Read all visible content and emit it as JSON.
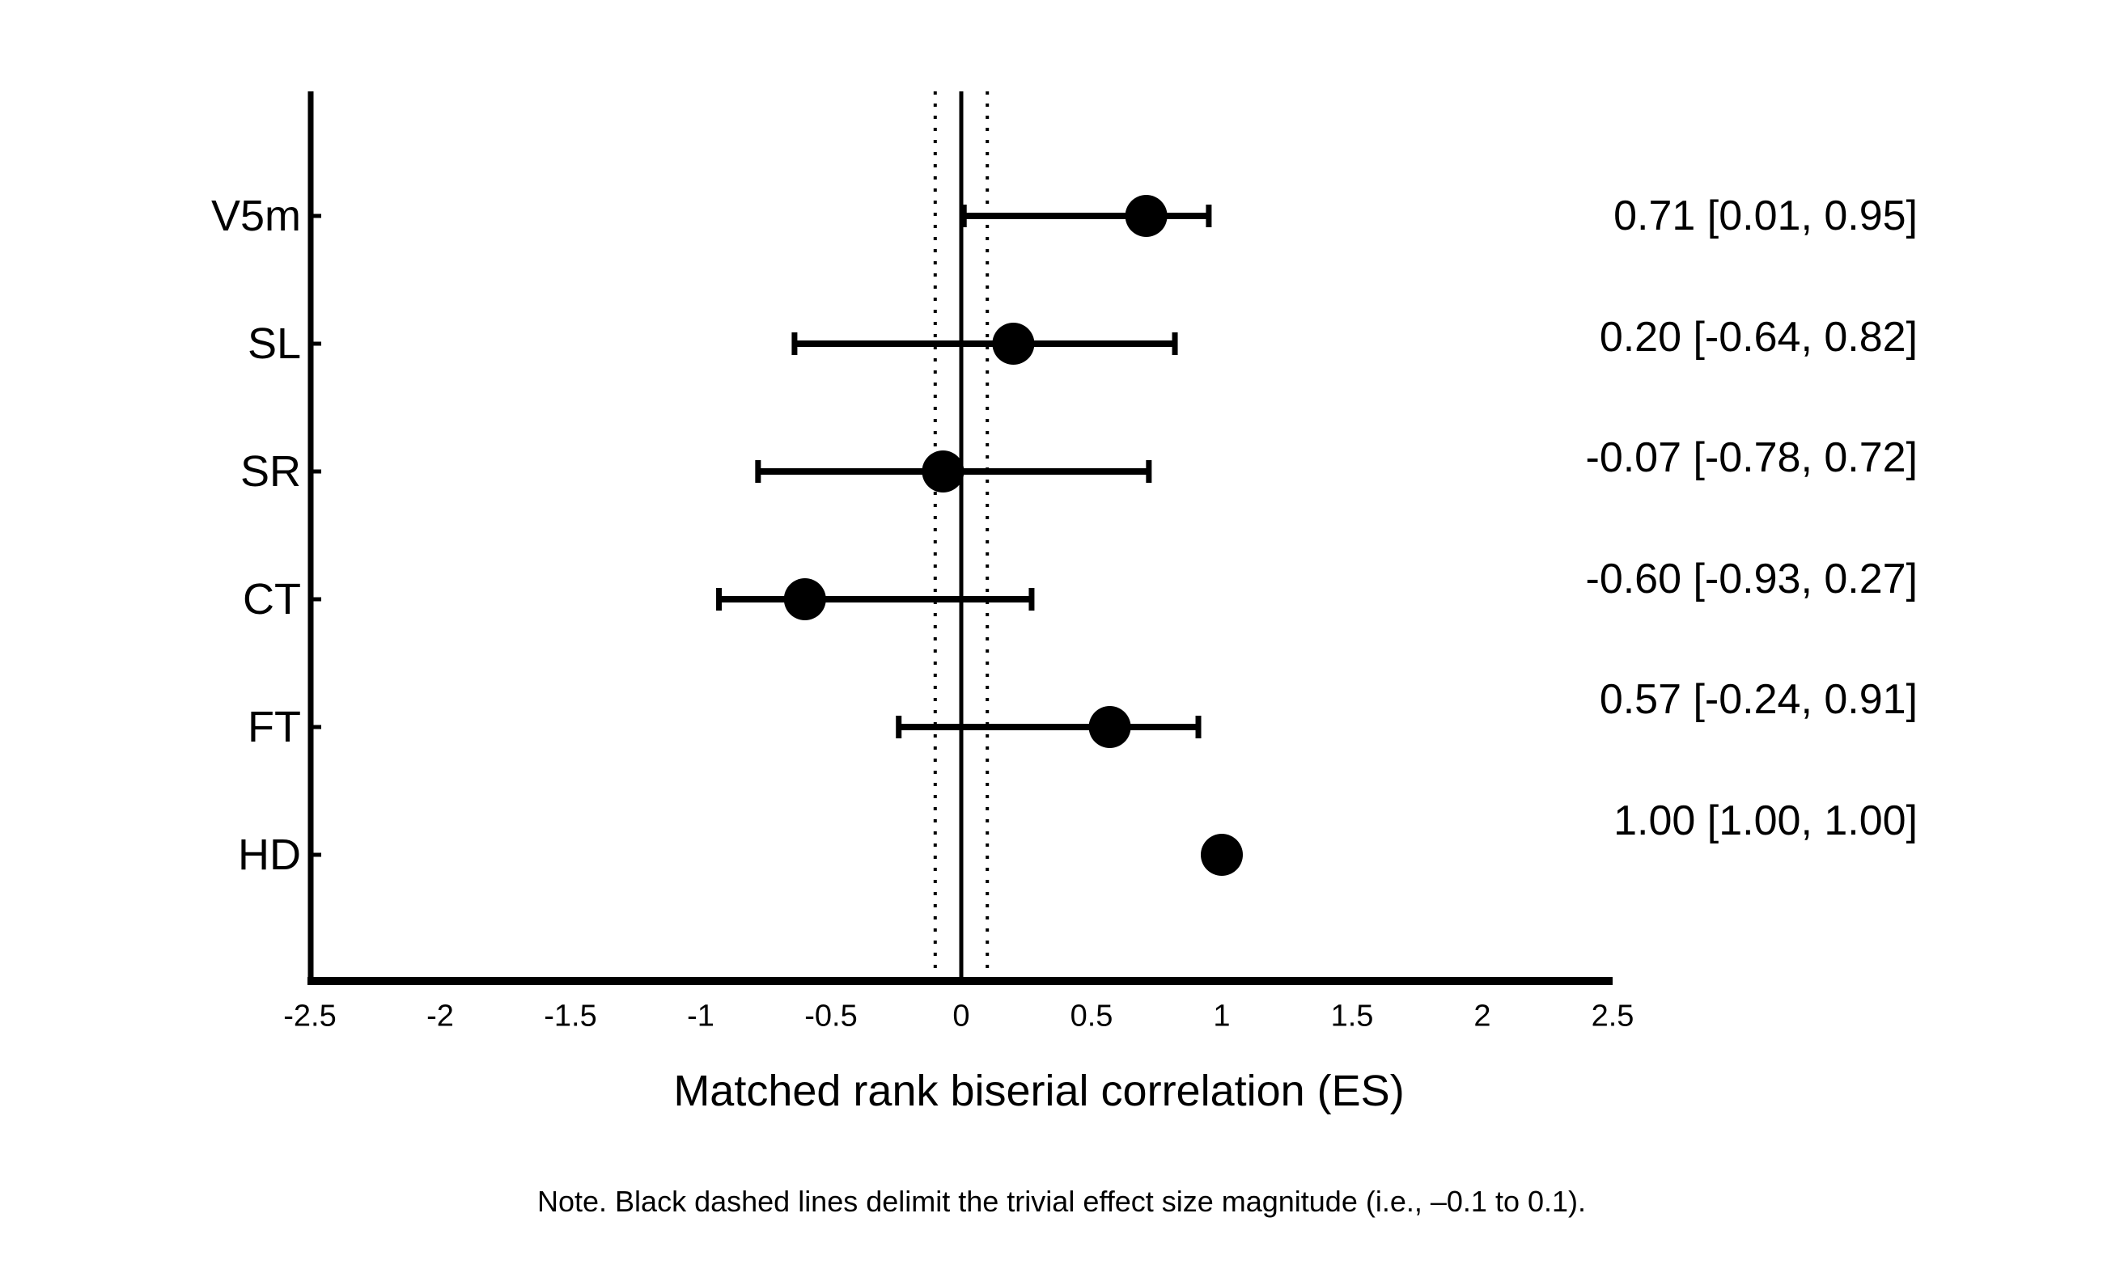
{
  "figure": {
    "background_color": "#ffffff",
    "ink_color": "#000000"
  },
  "chart_data": {
    "type": "scatter",
    "subtype": "forest-plot",
    "title": "",
    "xlabel": "Matched rank biserial correlation (ES)",
    "ylabel": "",
    "xlim": [
      -2.5,
      2.5
    ],
    "grid": false,
    "legend_position": "none",
    "xticks": [
      -2.5,
      -2,
      -1.5,
      -1,
      -0.5,
      0,
      0.5,
      1,
      1.5,
      2,
      2.5
    ],
    "xtick_labels": [
      "-2.5",
      "-2",
      "-1.5",
      "-1",
      "-0.5",
      "0",
      "0.5",
      "1",
      "1.5",
      "2",
      "2.5"
    ],
    "reference_lines": {
      "solid_at": 0,
      "dotted_at": [
        -0.1,
        0.1
      ]
    },
    "rows": [
      {
        "label": "V5m",
        "es": 0.71,
        "ci_low": 0.01,
        "ci_high": 0.95,
        "annotation": "0.71 [0.01, 0.95]"
      },
      {
        "label": "SL",
        "es": 0.2,
        "ci_low": -0.64,
        "ci_high": 0.82,
        "annotation": "0.20 [-0.64, 0.82]"
      },
      {
        "label": "SR",
        "es": -0.07,
        "ci_low": -0.78,
        "ci_high": 0.72,
        "annotation": "-0.07 [-0.78, 0.72]"
      },
      {
        "label": "CT",
        "es": -0.6,
        "ci_low": -0.93,
        "ci_high": 0.27,
        "annotation": "-0.60 [-0.93, 0.27]"
      },
      {
        "label": "FT",
        "es": 0.57,
        "ci_low": -0.24,
        "ci_high": 0.91,
        "annotation": "0.57 [-0.24, 0.91]"
      },
      {
        "label": "HD",
        "es": 1.0,
        "ci_low": 1.0,
        "ci_high": 1.0,
        "annotation": "1.00 [1.00, 1.00]"
      }
    ],
    "note": "Note. Black dashed lines delimit the trivial effect size magnitude (i.e., –0.1 to 0.1)."
  }
}
